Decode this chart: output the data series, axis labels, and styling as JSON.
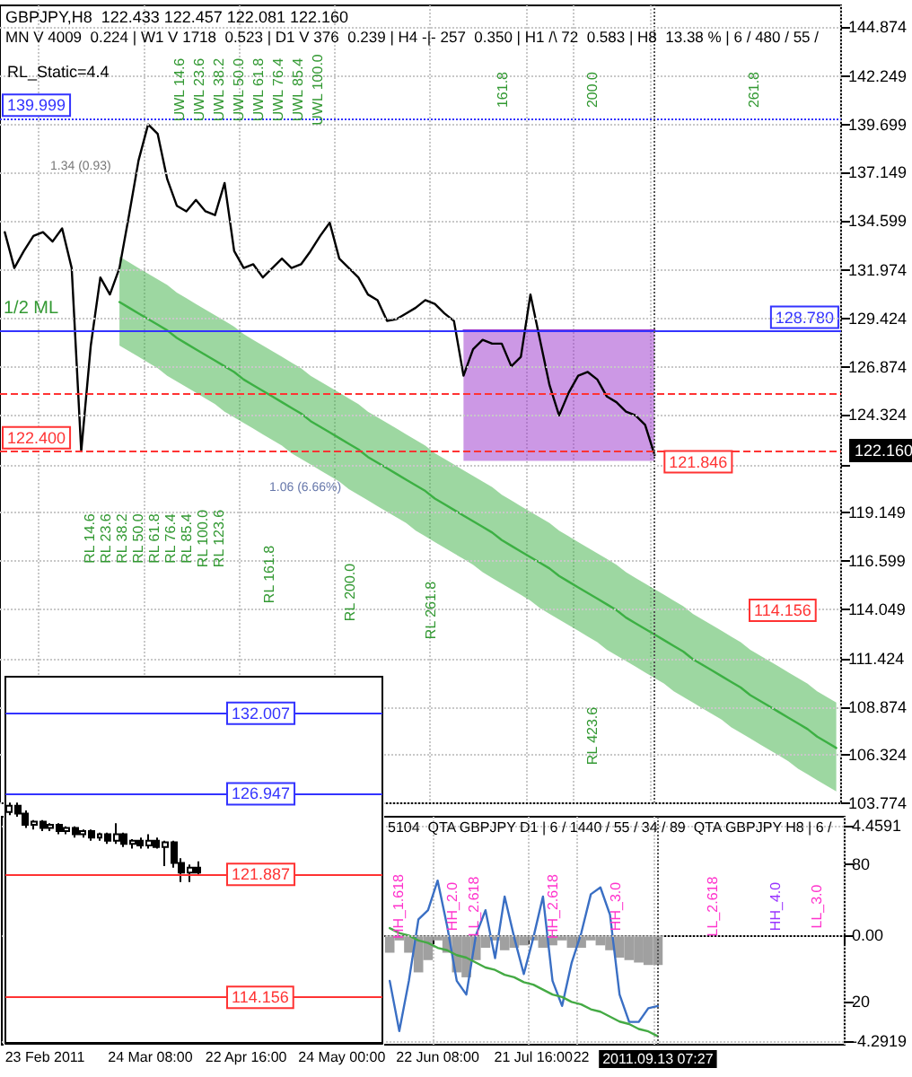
{
  "chart_data": [
    {
      "type": "line",
      "title": "GBPJPY,H8  122.433 122.457 122.081 122.160",
      "subtitle": "MN V 4009  0.224 | W1 V 1718  0.523 | D1 V 376  0.239 | H4 -|- 257  0.350 | H1 /\\ 72  0.583 | H8  13.38 % | 6 / 480 / 55 /",
      "categories": [
        null,
        null,
        null,
        null,
        "23 Feb 2011",
        null,
        null,
        null,
        null,
        null,
        null,
        null,
        null,
        null,
        null,
        "24 Mar 08:00",
        null,
        null,
        null,
        null,
        null,
        null,
        null,
        null,
        null,
        "22 Apr 16:00",
        null,
        null,
        null,
        null,
        null,
        null,
        null,
        null,
        null,
        "24 May 00:00",
        null,
        null,
        null,
        null,
        null,
        null,
        null,
        null,
        null,
        "22 Jun 08:00",
        null,
        null,
        null,
        null,
        null,
        null,
        null,
        null,
        null,
        "21 Jul 16:00",
        null,
        null,
        null,
        null,
        "22",
        null,
        null,
        null,
        null,
        null,
        null,
        null,
        "2011.09.13 07:27",
        null,
        null,
        null,
        null,
        null,
        null,
        null,
        null,
        null,
        null,
        null,
        null,
        null,
        null,
        null,
        null,
        null,
        null,
        null
      ],
      "series": [
        {
          "type": "line",
          "color": "#3cb043",
          "values": [
            null,
            null,
            null,
            null,
            null,
            null,
            null,
            null,
            null,
            null,
            null,
            null,
            130.3,
            130.0,
            129.7,
            129.4,
            129.1,
            128.8,
            128.4,
            128.1,
            127.8,
            127.5,
            127.2,
            126.9,
            126.6,
            126.2,
            125.9,
            125.6,
            125.3,
            125.0,
            124.7,
            124.4,
            124.0,
            123.7,
            123.4,
            123.1,
            122.8,
            122.5,
            122.1,
            121.8,
            121.5,
            121.2,
            120.9,
            120.6,
            120.3,
            119.9,
            119.6,
            119.3,
            119.0,
            118.7,
            118.4,
            118.1,
            117.7,
            117.4,
            117.1,
            116.8,
            116.5,
            116.2,
            115.8,
            115.5,
            115.2,
            114.9,
            114.6,
            114.3,
            114.0,
            113.6,
            113.3,
            113.0,
            112.7,
            112.4,
            112.1,
            111.8,
            111.4,
            111.1,
            110.8,
            110.5,
            110.2,
            109.9,
            109.5,
            109.2,
            108.9,
            108.6,
            108.3,
            108.0,
            107.7,
            107.3,
            107.0,
            106.7
          ],
          "upper": [
            null,
            null,
            null,
            null,
            null,
            null,
            null,
            null,
            null,
            null,
            null,
            null,
            132.7,
            132.4,
            132.1,
            131.8,
            131.5,
            131.2,
            130.8,
            130.5,
            130.2,
            129.9,
            129.6,
            129.3,
            129.0,
            128.6,
            128.3,
            128.0,
            127.7,
            127.4,
            127.1,
            126.8,
            126.4,
            126.1,
            125.8,
            125.5,
            125.2,
            124.9,
            124.5,
            124.2,
            123.9,
            123.6,
            123.3,
            123.0,
            122.7,
            122.3,
            122.0,
            121.7,
            121.4,
            121.1,
            120.8,
            120.5,
            120.1,
            119.8,
            119.5,
            119.2,
            118.9,
            118.6,
            118.2,
            117.9,
            117.6,
            117.3,
            117.0,
            116.7,
            116.4,
            116.0,
            115.7,
            115.4,
            115.1,
            114.8,
            114.5,
            114.2,
            113.8,
            113.5,
            113.2,
            112.9,
            112.6,
            112.3,
            111.9,
            111.6,
            111.3,
            111.0,
            110.7,
            110.4,
            110.1,
            109.7,
            109.4,
            109.1
          ],
          "lower": [
            null,
            null,
            null,
            null,
            null,
            null,
            null,
            null,
            null,
            null,
            null,
            null,
            128.0,
            127.7,
            127.4,
            127.1,
            126.8,
            126.4,
            126.1,
            125.8,
            125.5,
            125.2,
            124.9,
            124.5,
            124.2,
            123.9,
            123.6,
            123.3,
            123.0,
            122.7,
            122.3,
            122.0,
            121.7,
            121.4,
            121.1,
            120.8,
            120.4,
            120.1,
            119.8,
            119.5,
            119.2,
            118.9,
            118.6,
            118.2,
            117.9,
            117.6,
            117.3,
            117.0,
            116.7,
            116.4,
            116.0,
            115.7,
            115.4,
            115.1,
            114.8,
            114.5,
            114.1,
            113.8,
            113.5,
            113.2,
            112.9,
            112.6,
            112.3,
            111.9,
            111.6,
            111.3,
            111.0,
            110.7,
            110.4,
            110.1,
            109.7,
            109.4,
            109.1,
            108.8,
            108.5,
            108.2,
            107.8,
            107.5,
            107.2,
            106.9,
            106.6,
            106.3,
            106.0,
            105.6,
            105.3,
            105.0,
            104.7,
            104.4
          ]
        },
        {
          "type": "line",
          "color": "#9932cc",
          "values": [
            null,
            null,
            null,
            null,
            null,
            null,
            null,
            null,
            null,
            null,
            null,
            null,
            null,
            null,
            null,
            null,
            null,
            null,
            null,
            null,
            null,
            null,
            null,
            null,
            null,
            null,
            null,
            null,
            null,
            null,
            null,
            null,
            null,
            null,
            null,
            null,
            null,
            null,
            null,
            null,
            null,
            null,
            null,
            null,
            null,
            null,
            null,
            null,
            128.8,
            128.8,
            128.8,
            128.8,
            128.8,
            128.8,
            128.8,
            128.8,
            128.8,
            128.8,
            128.8,
            128.8,
            128.8,
            128.8,
            128.8,
            128.8,
            128.8,
            128.8,
            128.8,
            128.8,
            128.8,
            null,
            null,
            null,
            null,
            null,
            null,
            null,
            null,
            null,
            null,
            null,
            null,
            null,
            null,
            null,
            null,
            null,
            null,
            null
          ],
          "upper": [
            null,
            null,
            null,
            null,
            null,
            null,
            null,
            null,
            null,
            null,
            null,
            null,
            null,
            null,
            null,
            null,
            null,
            null,
            null,
            null,
            null,
            null,
            null,
            null,
            null,
            null,
            null,
            null,
            null,
            null,
            null,
            null,
            null,
            null,
            null,
            null,
            null,
            null,
            null,
            null,
            null,
            null,
            null,
            null,
            null,
            null,
            null,
            null,
            128.8,
            128.8,
            128.8,
            128.8,
            128.8,
            128.8,
            128.8,
            128.8,
            128.8,
            128.8,
            128.8,
            128.8,
            128.8,
            128.8,
            128.8,
            128.8,
            128.8,
            128.8,
            128.8,
            128.8,
            128.8,
            null,
            null,
            null,
            null,
            null,
            null,
            null,
            null,
            null,
            null,
            null,
            null,
            null,
            null,
            null,
            null,
            null,
            null,
            null
          ],
          "lower": [
            null,
            null,
            null,
            null,
            null,
            null,
            null,
            null,
            null,
            null,
            null,
            null,
            null,
            null,
            null,
            null,
            null,
            null,
            null,
            null,
            null,
            null,
            null,
            null,
            null,
            null,
            null,
            null,
            null,
            null,
            null,
            null,
            null,
            null,
            null,
            null,
            null,
            null,
            null,
            null,
            null,
            null,
            null,
            null,
            null,
            null,
            null,
            null,
            121.9,
            121.9,
            121.9,
            121.9,
            121.9,
            121.9,
            121.9,
            121.9,
            121.9,
            121.9,
            121.9,
            121.9,
            121.9,
            121.9,
            121.9,
            121.9,
            121.9,
            121.9,
            121.9,
            121.9,
            121.9,
            null,
            null,
            null,
            null,
            null,
            null,
            null,
            null,
            null,
            null,
            null,
            null,
            null,
            null,
            null,
            null,
            null,
            null,
            null
          ]
        },
        {
          "type": "line",
          "color": "#000000",
          "values": [
            134.0,
            132.1,
            133.0,
            133.8,
            134.0,
            133.5,
            134.2,
            132.1,
            122.4,
            128.0,
            131.6,
            130.7,
            132.1,
            134.9,
            137.8,
            139.7,
            139.2,
            136.8,
            135.4,
            135.1,
            135.7,
            135.1,
            134.9,
            136.6,
            133.0,
            132.1,
            132.3,
            131.6,
            132.1,
            132.6,
            132.1,
            132.3,
            133.0,
            133.8,
            134.5,
            132.6,
            132.1,
            131.6,
            130.7,
            130.4,
            129.3,
            129.4,
            129.7,
            130.0,
            130.4,
            130.2,
            129.7,
            129.3,
            126.4,
            127.8,
            128.3,
            128.1,
            128.1,
            126.9,
            127.4,
            130.7,
            128.3,
            125.9,
            124.3,
            125.5,
            126.4,
            126.6,
            126.2,
            125.3,
            125.0,
            124.5,
            124.3,
            123.8,
            122.2,
            null,
            null,
            null,
            null,
            null,
            null,
            null,
            null,
            null,
            null,
            null,
            null,
            null,
            null,
            null,
            null,
            null,
            null,
            null
          ]
        }
      ],
      "ylim": [
        103.774,
        146.0
      ],
      "yticks": [
        144.874,
        142.249,
        139.699,
        137.149,
        134.599,
        131.974,
        129.424,
        126.874,
        124.324,
        {
          "value": 121.699,
          "label": null
        },
        119.149,
        116.599,
        114.049,
        111.424,
        108.874,
        106.324,
        103.774
      ],
      "grid": true,
      "tick_labels": "y",
      "marker": "none",
      "ref_lines": [
        {
          "axis": "y",
          "value": 139.999,
          "label": "139.999",
          "color": "#3333ff",
          "line_style": "dotted"
        },
        {
          "axis": "y",
          "value": 128.78,
          "label": "128.780",
          "color": "#3333ff",
          "line_style": "solid"
        },
        {
          "axis": "y",
          "value": 125.5,
          "color": "#ff3333",
          "line_style": "dashed"
        },
        {
          "axis": "y",
          "value": 122.4,
          "label": "122.400",
          "color": "#ff3333",
          "line_style": "dashed"
        },
        {
          "axis": "x",
          "value": "2011.09.13 07:27",
          "color": "#555555",
          "line_style": "dotted"
        }
      ],
      "annotations": [
        "RL_Static=4.4",
        "1/2 ML",
        "1.34 (0.93)",
        "1.06 (6.66%)",
        "UWL 14.6",
        "UWL 23.6",
        "UWL 38.2",
        "UWL 50.0",
        "UWL 61.8",
        "UWL 76.4",
        "UWL 85.4",
        "UWL 100.0",
        "161.8",
        "200.0",
        "261.8",
        "RL 14.6",
        "RL 23.6",
        "RL 38.2",
        "RL 50.0",
        "RL 61.8",
        "RL 76.4",
        "RL 85.4",
        "RL 100.0",
        "RL 123.6",
        "RL 161.8",
        "RL 200.0",
        "RL 261.8",
        "RL 423.6",
        {
          "text": "121.846",
          "x": "2011.09.13 07:27",
          "y": 121.846
        },
        "114.156",
        "122.160"
      ]
    },
    {
      "type": "line",
      "categories": [
        null,
        null,
        null,
        null,
        "23 Feb 2011",
        null,
        null,
        null,
        null,
        null,
        null,
        null,
        null,
        null,
        null,
        "24 Mar 08:00",
        null,
        null,
        null,
        null,
        null,
        null,
        null,
        null,
        null,
        "22 Apr 16:00",
        null,
        null,
        null,
        null,
        null,
        null,
        null,
        null,
        null,
        "24 May 00:00",
        null,
        null,
        null,
        null,
        null,
        null,
        null,
        null,
        null,
        "22 Jun 08:00",
        null,
        null,
        null,
        null,
        null,
        null,
        null,
        null,
        null,
        "21 Jul 16:00",
        null,
        null,
        null,
        null,
        "22",
        null,
        null,
        null,
        null,
        null,
        null,
        null,
        "2011.09.13 07:27",
        null,
        null,
        null,
        null,
        null,
        null,
        null,
        null,
        null,
        null,
        null,
        null,
        null,
        null,
        null,
        null,
        null,
        null,
        null
      ],
      "series": [
        {
          "type": "bar",
          "color": "#a0a0a0",
          "values": [
            null,
            null,
            null,
            null,
            null,
            null,
            null,
            null,
            null,
            null,
            null,
            null,
            null,
            null,
            null,
            null,
            null,
            null,
            null,
            null,
            null,
            null,
            null,
            null,
            null,
            null,
            null,
            null,
            null,
            null,
            null,
            null,
            null,
            null,
            null,
            null,
            null,
            null,
            null,
            null,
            -0.7,
            -0.2,
            -0.7,
            -1.5,
            -1.0,
            -0.2,
            -0.7,
            -1.5,
            -1.7,
            -1.0,
            -0.5,
            -0.2,
            -0.6,
            -0.5,
            -0.4,
            -0.2,
            -0.5,
            -0.4,
            -0.2,
            -0.5,
            -0.5,
            -0.2,
            -0.4,
            -0.6,
            -0.9,
            -1.0,
            -1.1,
            -1.2,
            -1.2,
            null,
            null,
            null,
            null,
            null,
            null,
            null,
            null,
            null,
            null,
            null,
            null,
            null,
            null,
            null,
            null,
            null,
            null,
            null
          ]
        },
        {
          "type": "line",
          "color": "#3a6fc4",
          "axis": "y2",
          "values": [
            null,
            null,
            null,
            null,
            null,
            null,
            null,
            null,
            null,
            null,
            null,
            null,
            null,
            null,
            null,
            null,
            null,
            null,
            null,
            null,
            null,
            null,
            null,
            null,
            null,
            null,
            null,
            null,
            null,
            null,
            null,
            null,
            null,
            null,
            null,
            null,
            null,
            null,
            null,
            null,
            29,
            7,
            29,
            56,
            60,
            73,
            53,
            29,
            23,
            49,
            60,
            39,
            66,
            48,
            32,
            48,
            66,
            29,
            18,
            37,
            50,
            67,
            70,
            58,
            23,
            11,
            11,
            17,
            18,
            null,
            null,
            null,
            null,
            null,
            null,
            null,
            null,
            null,
            null,
            null,
            null,
            null,
            null,
            null,
            null,
            null,
            null,
            null
          ]
        },
        {
          "type": "line",
          "color": "#44aa44",
          "values": [
            null,
            null,
            null,
            null,
            null,
            null,
            null,
            null,
            null,
            null,
            null,
            null,
            null,
            null,
            null,
            null,
            null,
            null,
            null,
            null,
            null,
            null,
            null,
            null,
            null,
            null,
            null,
            null,
            null,
            null,
            null,
            null,
            null,
            null,
            null,
            null,
            null,
            null,
            null,
            null,
            0.3,
            0.1,
            0.0,
            -0.2,
            -0.3,
            -0.5,
            -0.6,
            -0.8,
            -0.9,
            -1.1,
            -1.3,
            -1.4,
            -1.6,
            -1.7,
            -1.9,
            -2.0,
            -2.2,
            -2.4,
            -2.5,
            -2.7,
            -2.8,
            -3.0,
            -3.1,
            -3.3,
            -3.5,
            -3.6,
            -3.8,
            -3.9,
            -4.1,
            null,
            null,
            null,
            null,
            null,
            null,
            null,
            null,
            null,
            null,
            null,
            null,
            null,
            null,
            null,
            null,
            null,
            null,
            null
          ]
        }
      ],
      "ylim": [
        -4.44,
        4.83
      ],
      "yticks": [
        4.4591,
        {
          "value": 0,
          "label": "0.00"
        },
        -4.2919
      ],
      "y2lim": [
        1,
        101
      ],
      "y2ticks": [
        80,
        20
      ],
      "grid": true,
      "marker": "none",
      "ref_lines": [
        {
          "axis": "x",
          "value": "2011.09.13 07:27",
          "color": "#555555",
          "line_style": "dotted"
        }
      ],
      "annotations": [
        "5104  QTA GBPJPY D1 | 6 / 1440 / 55 / 34 / 89  QTA GBPJPY H8 | 6 /",
        "HH_1.618",
        "HH_2.0",
        "LL_2.618",
        "HH_2.618",
        "HH_3.0",
        "LL_2.618",
        "HH_4.0",
        "LL_3.0"
      ]
    },
    {
      "type": "candlestick",
      "color": "#000000",
      "categories": [
        null,
        null,
        null,
        null,
        null,
        null,
        null,
        null,
        null,
        null,
        null,
        null,
        null,
        null,
        null,
        null,
        null,
        null,
        null,
        null,
        null,
        null,
        null,
        null,
        null,
        null,
        null,
        null,
        null,
        null,
        null,
        null,
        null,
        null,
        null,
        null,
        null,
        null,
        null,
        null,
        null,
        null,
        null,
        null,
        null,
        null
      ],
      "ohlc": [
        [
          125.8,
          126.4,
          125.6,
          126.2
        ],
        [
          126.2,
          126.4,
          125.5,
          125.7
        ],
        [
          125.7,
          125.9,
          124.8,
          125.0
        ],
        [
          125.0,
          125.3,
          124.7,
          125.2
        ],
        [
          125.2,
          125.3,
          124.6,
          124.8
        ],
        [
          124.8,
          125.1,
          124.6,
          125.0
        ],
        [
          125.0,
          125.1,
          124.4,
          124.6
        ],
        [
          124.6,
          124.9,
          124.4,
          124.8
        ],
        [
          124.8,
          124.9,
          124.2,
          124.4
        ],
        [
          124.4,
          124.7,
          124.2,
          124.6
        ],
        [
          124.6,
          124.7,
          124.0,
          124.2
        ],
        [
          124.2,
          124.5,
          124.0,
          124.4
        ],
        [
          124.4,
          124.5,
          123.8,
          124.0
        ],
        [
          124.0,
          125.1,
          123.8,
          124.4
        ],
        [
          124.4,
          124.5,
          123.6,
          123.8
        ],
        [
          123.8,
          124.1,
          123.5,
          124.0
        ],
        [
          124.0,
          124.2,
          123.5,
          123.7
        ],
        [
          123.7,
          124.4,
          123.5,
          124.0
        ],
        [
          124.0,
          124.2,
          123.5,
          123.6
        ],
        [
          123.6,
          124.0,
          122.4,
          123.9
        ],
        [
          123.9,
          124.0,
          122.3,
          122.6
        ],
        [
          122.6,
          122.9,
          121.4,
          122.0
        ],
        [
          122.0,
          122.5,
          121.4,
          122.3
        ],
        [
          122.3,
          122.7,
          121.8,
          122.0
        ],
        null,
        null,
        null,
        null,
        null,
        null,
        null,
        null,
        null,
        null,
        null,
        null,
        null,
        null,
        null,
        null,
        null,
        null,
        null,
        null,
        null,
        null
      ],
      "ylim": [
        111.3,
        134.3
      ],
      "yticks": [
        132.007,
        126.947,
        121.887,
        114.156
      ],
      "ref_lines": [
        {
          "axis": "y",
          "value": 132.007,
          "color": "#3333ff",
          "line_style": "solid"
        },
        {
          "axis": "y",
          "value": 126.947,
          "color": "#3333ff",
          "line_style": "solid"
        },
        {
          "axis": "y",
          "value": 121.887,
          "color": "#ff3333",
          "line_style": "solid"
        },
        {
          "axis": "y",
          "value": 114.156,
          "color": "#ff3333",
          "line_style": "solid"
        }
      ]
    }
  ]
}
